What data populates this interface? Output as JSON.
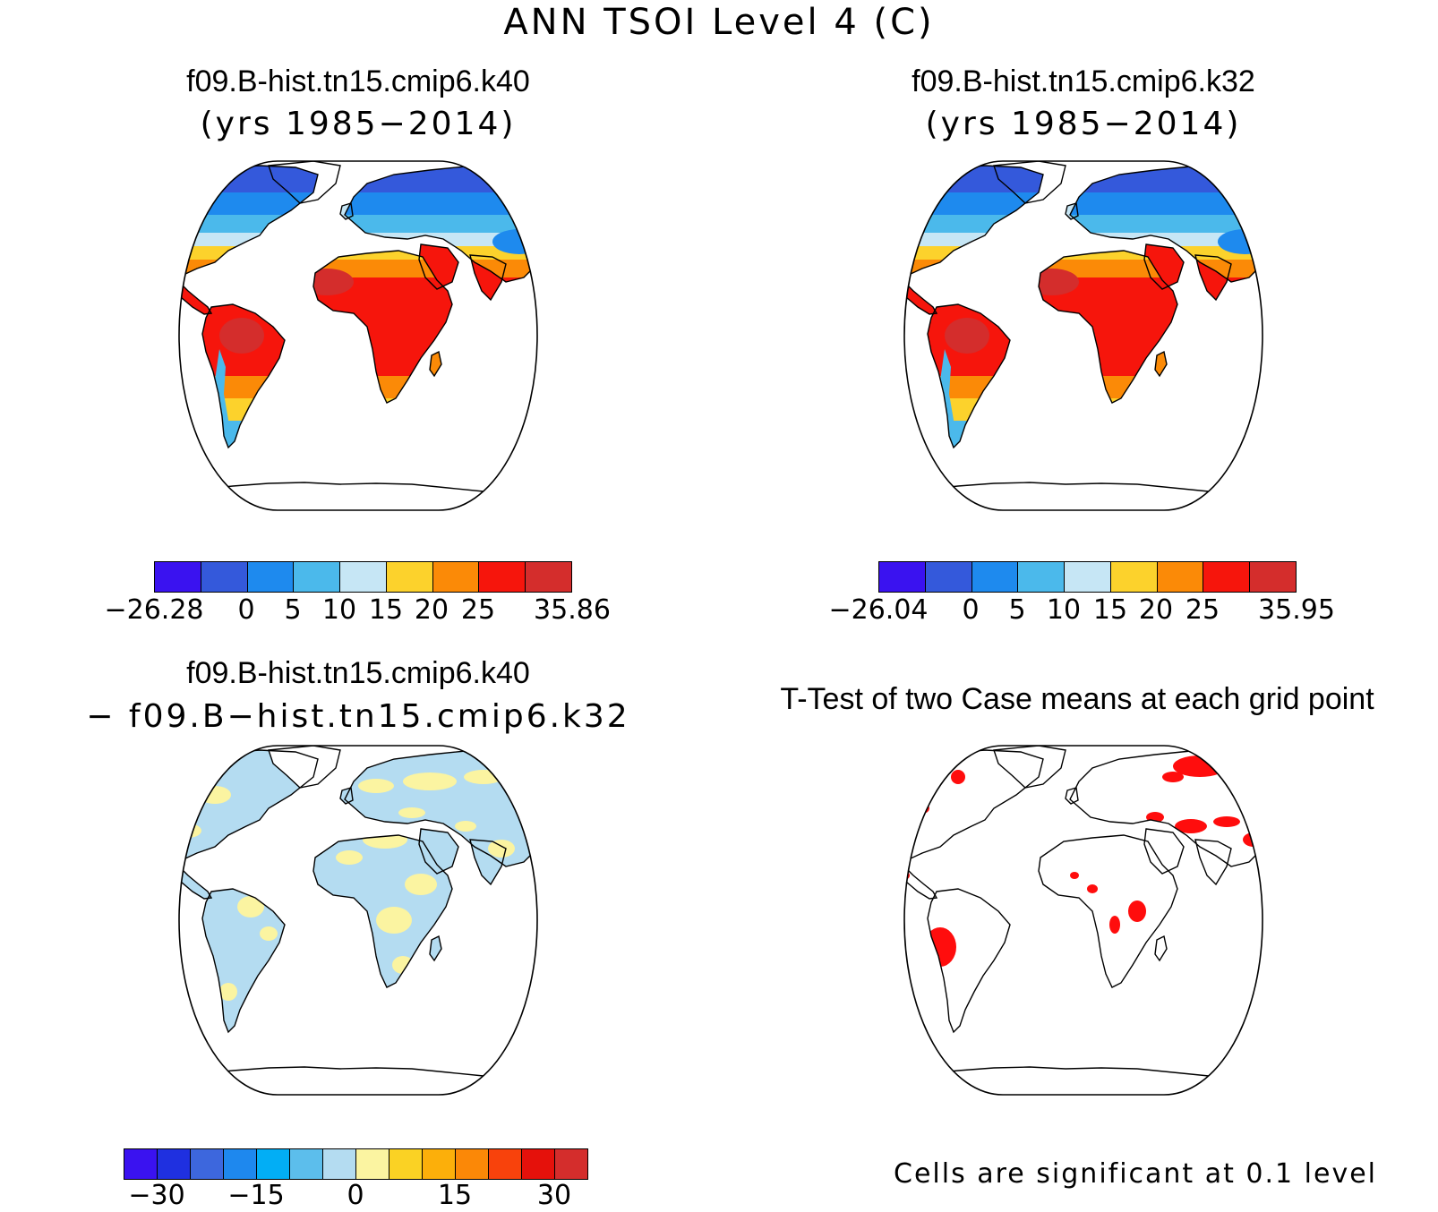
{
  "figure": {
    "title": "ANN TSOI Level 4 (C)"
  },
  "panels": [
    {
      "id": "case1",
      "title": "f09.B-hist.tn15.cmip6.k40",
      "subtitle": "(yrs 1985−2014)",
      "kind": "absolute",
      "colorbar": {
        "colors": [
          "#3a12f0",
          "#3459db",
          "#1e8aee",
          "#4bb9eb",
          "#c6e6f5",
          "#fcd22c",
          "#fb8a07",
          "#f6150c",
          "#d42d2c"
        ],
        "labels": [
          "−26.28",
          "0",
          "5",
          "10",
          "15",
          "20",
          "25",
          "35.86"
        ]
      }
    },
    {
      "id": "case2",
      "title": "f09.B-hist.tn15.cmip6.k32",
      "subtitle": "(yrs 1985−2014)",
      "kind": "absolute",
      "colorbar": {
        "colors": [
          "#3a12f0",
          "#3459db",
          "#1e8aee",
          "#4bb9eb",
          "#c6e6f5",
          "#fcd22c",
          "#fb8a07",
          "#f6150c",
          "#d42d2c"
        ],
        "labels": [
          "−26.04",
          "0",
          "5",
          "10",
          "15",
          "20",
          "25",
          "35.95"
        ]
      }
    },
    {
      "id": "difference",
      "title": "f09.B-hist.tn15.cmip6.k40",
      "subtitle": "− f09.B−hist.tn15.cmip6.k32",
      "kind": "difference",
      "colorbar": {
        "colors": [
          "#3a12f0",
          "#1f30e0",
          "#3d67dd",
          "#1e88ee",
          "#02aef5",
          "#5cbeec",
          "#b4dcf1",
          "#fbf4a1",
          "#fad224",
          "#fcaf0a",
          "#fb8807",
          "#f8420c",
          "#e5110b",
          "#d42d2c"
        ],
        "labels": [
          "−30",
          "−15",
          "0",
          "15",
          "30"
        ]
      }
    },
    {
      "id": "ttest",
      "title": "T-Test of two Case means at each grid point",
      "kind": "significance",
      "note": "Cells are significant at 0.1 level"
    }
  ]
}
